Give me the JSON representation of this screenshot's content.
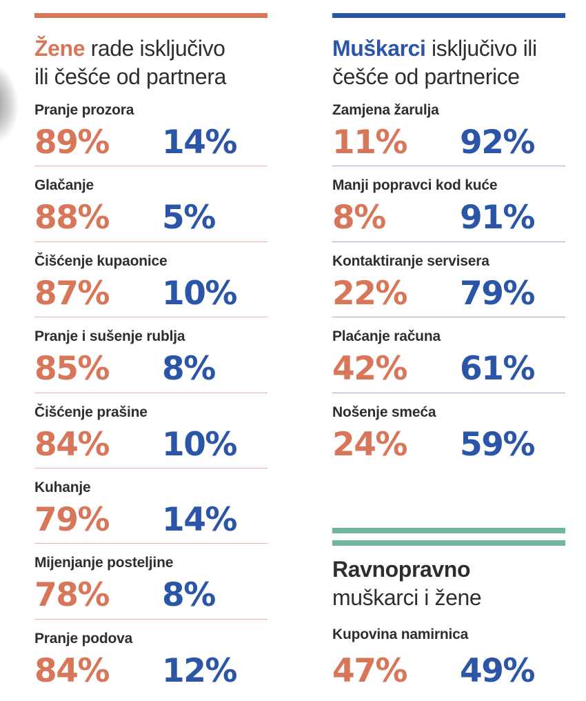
{
  "accent_colors": {
    "women_orange": "#d8765a",
    "men_blue": "#2b55a7",
    "equal_green": "#6fb5a0",
    "text_dark": "#2e2e2e"
  },
  "women": {
    "title_strong": "Žene",
    "title_rest": "rade isključivo",
    "title_line2": "ili češće od partnera",
    "items": [
      {
        "label": "Pranje prozora",
        "women": "89%",
        "men": "14%"
      },
      {
        "label": "Glačanje",
        "women": "88%",
        "men": "5%"
      },
      {
        "label": "Čišćenje kupaonice",
        "women": "87%",
        "men": "10%"
      },
      {
        "label": "Pranje i sušenje rublja",
        "women": "85%",
        "men": "8%"
      },
      {
        "label": "Čišćenje prašine",
        "women": "84%",
        "men": "10%"
      },
      {
        "label": "Kuhanje",
        "women": "79%",
        "men": "14%"
      },
      {
        "label": "Mijenjanje posteljine",
        "women": "78%",
        "men": "8%"
      },
      {
        "label": "Pranje podova",
        "women": "84%",
        "men": "12%"
      }
    ]
  },
  "men": {
    "title_strong": "Muškarci",
    "title_rest": "isključivo ili",
    "title_line2": "češće od partnerice",
    "items": [
      {
        "label": "Zamjena žarulja",
        "women": "11%",
        "men": "92%"
      },
      {
        "label": "Manji popravci kod kuće",
        "women": "8%",
        "men": "91%"
      },
      {
        "label": "Kontaktiranje servisera",
        "women": "22%",
        "men": "79%"
      },
      {
        "label": "Plaćanje računa",
        "women": "42%",
        "men": "61%"
      },
      {
        "label": "Nošenje smeća",
        "women": "24%",
        "men": "59%"
      }
    ]
  },
  "equal": {
    "title_line1": "Ravnopravno",
    "title_line2": "muškarci i žene",
    "item": {
      "label": "Kupovina namirnica",
      "women": "47%",
      "men": "49%"
    }
  },
  "chart_data": {
    "type": "table",
    "series_names": [
      "Žene",
      "Muškarci"
    ],
    "groups": [
      {
        "title": "Žene rade isključivo ili češće od partnera",
        "rows": [
          {
            "task": "Pranje prozora",
            "zene": 89,
            "muskarci": 14
          },
          {
            "task": "Glačanje",
            "zene": 88,
            "muskarci": 5
          },
          {
            "task": "Čišćenje kupaonice",
            "zene": 87,
            "muskarci": 10
          },
          {
            "task": "Pranje i sušenje rublja",
            "zene": 85,
            "muskarci": 8
          },
          {
            "task": "Čišćenje prašine",
            "zene": 84,
            "muskarci": 10
          },
          {
            "task": "Kuhanje",
            "zene": 79,
            "muskarci": 14
          },
          {
            "task": "Mijenjanje posteljine",
            "zene": 78,
            "muskarci": 8
          },
          {
            "task": "Pranje podova",
            "zene": 84,
            "muskarci": 12
          }
        ]
      },
      {
        "title": "Muškarci isključivo ili češće od partnerice",
        "rows": [
          {
            "task": "Zamjena žarulja",
            "zene": 11,
            "muskarci": 92
          },
          {
            "task": "Manji popravci kod kuće",
            "zene": 8,
            "muskarci": 91
          },
          {
            "task": "Kontaktiranje servisera",
            "zene": 22,
            "muskarci": 79
          },
          {
            "task": "Plaćanje računa",
            "zene": 42,
            "muskarci": 61
          },
          {
            "task": "Nošenje smeća",
            "zene": 24,
            "muskarci": 59
          }
        ]
      },
      {
        "title": "Ravnopravno muškarci i žene",
        "rows": [
          {
            "task": "Kupovina namirnica",
            "zene": 47,
            "muskarci": 49
          }
        ]
      }
    ]
  }
}
